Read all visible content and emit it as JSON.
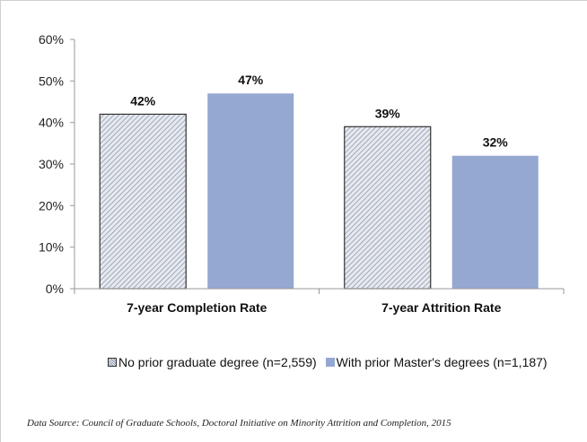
{
  "chart_data": {
    "type": "bar",
    "categories": [
      "7-year Completion Rate",
      "7-year Attrition Rate"
    ],
    "series": [
      {
        "name": "No prior graduate degree (n=2,559)",
        "values": [
          42,
          39
        ],
        "labels": [
          "42%",
          "39%"
        ],
        "color": "#dfe3ea",
        "pattern": "hatch"
      },
      {
        "name": "With prior Master's degrees (n=1,187)",
        "values": [
          47,
          32
        ],
        "labels": [
          "47%",
          "32%"
        ],
        "color": "#95a8d2",
        "pattern": "solid"
      }
    ],
    "ylim": [
      0,
      60
    ],
    "yticks": [
      0,
      10,
      20,
      30,
      40,
      50,
      60
    ],
    "ytick_labels": [
      "0%",
      "10%",
      "20%",
      "30%",
      "40%",
      "50%",
      "60%"
    ],
    "grid": false,
    "legend_position": "bottom"
  },
  "source": "Data Source:  Council of Graduate Schools, Doctoral Initiative on Minority Attrition and Completion, 2015"
}
